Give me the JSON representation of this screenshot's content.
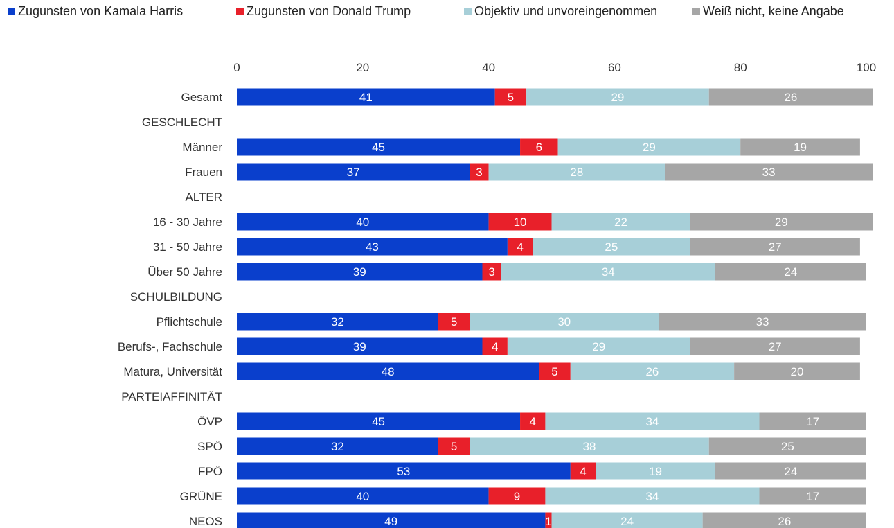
{
  "legend": {
    "harris": "Zugunsten von Kamala Harris",
    "trump": "Zugunsten von Donald Trump",
    "neutral": "Objektiv und unvoreingenommen",
    "unknown": "Weiß nicht, keine Angabe"
  },
  "colors": {
    "harris": "#0a3fcc",
    "trump": "#e8202a",
    "neutral": "#a7cfd8",
    "unknown": "#a6a6a6"
  },
  "chart_data": {
    "type": "bar",
    "orientation": "horizontal",
    "stacked": true,
    "xlim": [
      0,
      100
    ],
    "xticks": [
      "0",
      "20",
      "40",
      "60",
      "80",
      "100"
    ],
    "xtick_values": [
      0,
      20,
      40,
      60,
      80,
      100
    ],
    "legend_position": "top",
    "grid": false,
    "categories": [
      "Gesamt",
      "GESCHLECHT",
      "Männer",
      "Frauen",
      "ALTER",
      "16 - 30 Jahre",
      "31 - 50 Jahre",
      "Über 50 Jahre",
      "SCHULBILDUNG",
      "Pflichtschule",
      "Berufs-, Fachschule",
      "Matura, Universität",
      "PARTEIAFFINITÄT",
      "ÖVP",
      "SPÖ",
      "FPÖ",
      "GRÜNE",
      "NEOS"
    ],
    "series": [
      {
        "name": "Zugunsten von Kamala Harris",
        "values": [
          41,
          null,
          45,
          37,
          null,
          40,
          43,
          39,
          null,
          32,
          39,
          48,
          null,
          45,
          32,
          53,
          40,
          49
        ]
      },
      {
        "name": "Zugunsten von Donald Trump",
        "values": [
          5,
          null,
          6,
          3,
          null,
          10,
          4,
          3,
          null,
          5,
          4,
          5,
          null,
          4,
          5,
          4,
          9,
          1
        ]
      },
      {
        "name": "Objektiv und unvoreingenommen",
        "values": [
          29,
          null,
          29,
          28,
          null,
          22,
          25,
          34,
          null,
          30,
          29,
          26,
          null,
          34,
          38,
          19,
          34,
          24
        ]
      },
      {
        "name": "Weiß nicht, keine Angabe",
        "values": [
          26,
          null,
          19,
          33,
          null,
          29,
          27,
          24,
          null,
          33,
          27,
          20,
          null,
          17,
          25,
          24,
          17,
          26
        ]
      }
    ]
  }
}
